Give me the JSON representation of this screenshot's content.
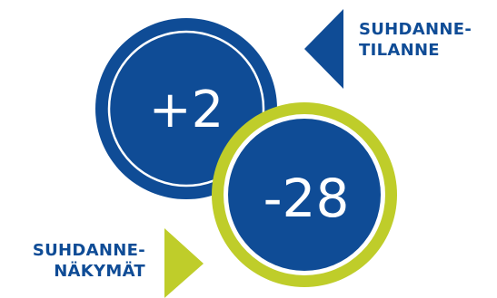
{
  "colors": {
    "primary_blue": "#0f4c96",
    "accent_green": "#bfcd2a",
    "ring_white": "#ffffff"
  },
  "indicators": [
    {
      "value": "+2",
      "label_lines": [
        "SUHDANNE-",
        "TILANNE"
      ],
      "pointer": "left-triangle-blue"
    },
    {
      "value": "-28",
      "label_lines": [
        "SUHDANNE-",
        "NÄKYMÄT"
      ],
      "pointer": "right-triangle-green"
    }
  ]
}
